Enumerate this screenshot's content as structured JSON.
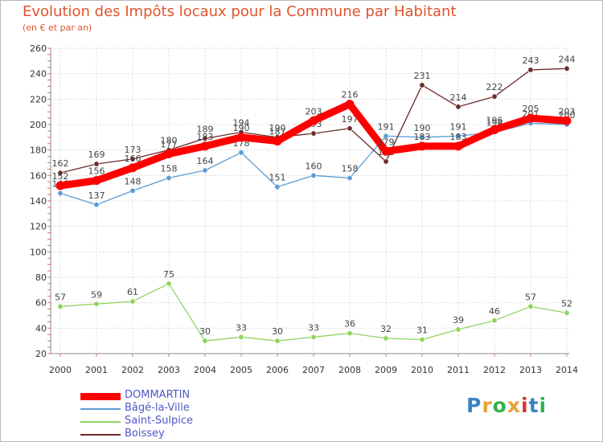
{
  "title": "Evolution des Impôts locaux pour la Commune par Habitant",
  "subtitle": "(en € et par an)",
  "logo": {
    "text": "Proxiti",
    "colors": [
      "#3b82c4",
      "#e8a13a",
      "#2fb34a",
      "#e8a13a",
      "#d8342b",
      "#3b82c4",
      "#2fb34a"
    ]
  },
  "chart_data": {
    "type": "line",
    "x": [
      "2000",
      "2001",
      "2002",
      "2003",
      "2004",
      "2005",
      "2006",
      "2007",
      "2008",
      "2009",
      "2010",
      "2011",
      "2012",
      "2013",
      "2014"
    ],
    "ylim": [
      20,
      260
    ],
    "yticks": [
      20,
      40,
      60,
      80,
      100,
      120,
      140,
      160,
      180,
      200,
      220,
      240,
      260
    ],
    "grid": true,
    "legend_position": "bottom-left",
    "series": [
      {
        "name": "DOMMARTIN",
        "color": "#ff0000",
        "values": [
          152,
          156,
          166,
          177,
          183,
          190,
          187,
          203,
          216,
          179,
          183,
          183,
          196,
          205,
          203
        ],
        "labels": [
          "152",
          "156",
          "166",
          "177",
          "183",
          "190",
          "187",
          "203",
          "216",
          "179",
          "183",
          "183",
          "196",
          "205",
          "203"
        ]
      },
      {
        "name": "Bâgé-la-Ville",
        "color": "#5a9bd5",
        "values": [
          146,
          137,
          148,
          158,
          164,
          178,
          151,
          160,
          158,
          191,
          190,
          191,
          194,
          201,
          200
        ],
        "labels": [
          "146",
          "137",
          "148",
          "158",
          "164",
          "178",
          "151",
          "160",
          "158",
          "191",
          "190",
          "191",
          "194",
          "201",
          "200"
        ]
      },
      {
        "name": "Saint-Sulpice",
        "color": "#8fd460",
        "values": [
          57,
          59,
          61,
          75,
          30,
          33,
          30,
          33,
          36,
          32,
          31,
          39,
          46,
          57,
          52
        ],
        "labels": [
          "57",
          "59",
          "61",
          "75",
          "30",
          "33",
          "30",
          "33",
          "36",
          "32",
          "31",
          "39",
          "46",
          "57",
          "52"
        ]
      },
      {
        "name": "Boissey",
        "color": "#6e2b2b",
        "values": [
          162,
          169,
          173,
          180,
          189,
          194,
          190,
          193,
          197,
          171,
          231,
          214,
          222,
          243,
          244
        ],
        "labels": [
          "162",
          "169",
          "173",
          "180",
          "189",
          "194",
          "190",
          "193",
          "197",
          "171",
          "231",
          "214",
          "222",
          "243",
          "244"
        ]
      }
    ]
  }
}
